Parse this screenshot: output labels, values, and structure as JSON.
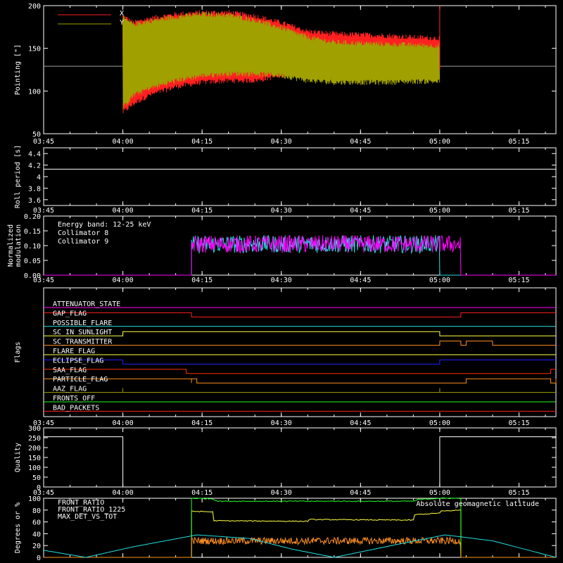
{
  "colors": {
    "bg": "#000000",
    "axis": "#ffffff",
    "x": "#ff2020",
    "y": "#a0a000",
    "col8": "#20e0e0",
    "col9": "#ff00ff",
    "front_ratio": "#ffff40",
    "front_ratio_1225": "#20ff20",
    "max_det": "#ff9020",
    "geomag": "#20e0e0"
  },
  "time_ticks": [
    "03:45",
    "04:00",
    "04:15",
    "04:30",
    "04:45",
    "05:00",
    "05:15"
  ],
  "chart_data": [
    {
      "id": "pointing",
      "type": "line",
      "title": "",
      "xlabel": "",
      "ylabel": "Pointing [\"]",
      "xlim": [
        "03:45",
        "05:22"
      ],
      "ylim": [
        50,
        200
      ],
      "yticks": [
        50,
        100,
        150,
        200
      ],
      "legend": {
        "placement": "top-left",
        "entries": [
          "X",
          "Y"
        ]
      },
      "reference_line": 129,
      "series": [
        {
          "name": "X",
          "color": "#ff2020",
          "description_range": "oscillates 04:00–05:00",
          "x": [
            "04:00",
            "04:02",
            "04:05",
            "04:10",
            "04:15",
            "04:20",
            "04:25",
            "04:30",
            "04:35",
            "04:40",
            "04:45",
            "04:50",
            "04:55",
            "05:00"
          ],
          "y_max": [
            188,
            180,
            185,
            190,
            192,
            192,
            188,
            180,
            170,
            167,
            166,
            165,
            163,
            162
          ],
          "y_min": [
            75,
            85,
            95,
            105,
            110,
            112,
            112,
            118,
            122,
            123,
            124,
            124,
            125,
            125
          ]
        },
        {
          "name": "Y",
          "color": "#a0a000",
          "x": [
            "04:00",
            "04:02",
            "04:05",
            "04:10",
            "04:15",
            "04:20",
            "04:25",
            "04:30",
            "04:35",
            "04:40",
            "04:45",
            "04:50",
            "04:55",
            "05:00"
          ],
          "y_max": [
            185,
            178,
            182,
            187,
            190,
            189,
            183,
            174,
            163,
            157,
            156,
            155,
            154,
            153
          ],
          "y_min": [
            80,
            95,
            103,
            112,
            118,
            120,
            120,
            118,
            112,
            110,
            110,
            110,
            111,
            111
          ]
        }
      ]
    },
    {
      "id": "roll",
      "type": "line",
      "ylabel": "Roll period [s]",
      "ylim": [
        3.5,
        4.5
      ],
      "yticks": [
        3.6,
        3.8,
        4.0,
        4.2,
        4.4
      ],
      "series": [
        {
          "name": "",
          "x": [
            "03:45",
            "05:22"
          ],
          "y": [
            4.13,
            4.13
          ],
          "color": "#ffffff"
        }
      ]
    },
    {
      "id": "modulation",
      "type": "line",
      "ylabel": "Normalized modulation",
      "ylim": [
        0,
        0.2
      ],
      "yticks": [
        0.0,
        0.05,
        0.1,
        0.15,
        0.2
      ],
      "ytick_labels": [
        "0.00",
        "0.05",
        "0.10",
        "0.15",
        "0.20"
      ],
      "legend": {
        "placement": "top-left",
        "header": "Energy band: 12-25 keV",
        "entries": [
          "Collimator 8",
          "Collimator 9"
        ]
      },
      "series": [
        {
          "name": "Collimator 8",
          "color": "#20e0e0",
          "start": "04:13",
          "end": "05:00",
          "mean": 0.105,
          "noise": 0.03
        },
        {
          "name": "Collimator 9",
          "color": "#ff00ff",
          "start": "04:13",
          "end": "05:04",
          "mean": 0.105,
          "noise": 0.03
        }
      ]
    },
    {
      "id": "flags",
      "type": "line",
      "ylabel": "Flags",
      "series": [
        {
          "name": "ATTENUATOR_STATE",
          "color": "#ff00ff",
          "steps": [
            [
              "03:45",
              0
            ],
            [
              "05:22",
              0
            ]
          ]
        },
        {
          "name": "GAP_FLAG",
          "color": "#ff2020",
          "steps": [
            [
              "03:45",
              1
            ],
            [
              "04:13",
              0
            ],
            [
              "05:04",
              1
            ],
            [
              "05:22",
              1
            ]
          ]
        },
        {
          "name": "POSSIBLE_FLARE",
          "color": "#20e0e0",
          "steps": [
            [
              "03:45",
              0
            ],
            [
              "05:22",
              0
            ]
          ]
        },
        {
          "name": "SC_IN_SUNLIGHT",
          "color": "#ffff40",
          "steps": [
            [
              "03:45",
              0
            ],
            [
              "04:00",
              1
            ],
            [
              "05:00",
              0
            ],
            [
              "05:22",
              0
            ]
          ]
        },
        {
          "name": "SC_TRANSMITTER",
          "color": "#ff9020",
          "steps": [
            [
              "03:45",
              0
            ],
            [
              "05:00",
              1
            ],
            [
              "05:04",
              0
            ],
            [
              "05:05",
              1
            ],
            [
              "05:10",
              0
            ],
            [
              "05:22",
              0
            ]
          ]
        },
        {
          "name": "FLARE_FLAG",
          "color": "#ffff40",
          "steps": [
            [
              "03:45",
              0
            ],
            [
              "05:22",
              0
            ]
          ]
        },
        {
          "name": "ECLIPSE_FLAG",
          "color": "#2020ff",
          "steps": [
            [
              "03:45",
              1
            ],
            [
              "04:00",
              0
            ],
            [
              "05:00",
              1
            ],
            [
              "05:22",
              1
            ]
          ]
        },
        {
          "name": "SAA_FLAG",
          "color": "#ff3000",
          "steps": [
            [
              "03:45",
              1
            ],
            [
              "04:12",
              0
            ],
            [
              "05:21",
              1
            ],
            [
              "05:22",
              1
            ]
          ]
        },
        {
          "name": "PARTICLE_FLAG",
          "color": "#ff9020",
          "steps": [
            [
              "03:45",
              1
            ],
            [
              "04:13",
              0
            ],
            [
              "04:13",
              1
            ],
            [
              "04:14",
              0
            ],
            [
              "05:05",
              1
            ],
            [
              "05:21",
              0
            ],
            [
              "05:22",
              1
            ]
          ]
        },
        {
          "name": "AAZ_FLAG",
          "color": "#a0a000",
          "steps": [
            [
              "03:45",
              0
            ],
            [
              "04:00",
              1
            ],
            [
              "04:00",
              0
            ],
            [
              "05:00",
              1
            ],
            [
              "05:00",
              0
            ],
            [
              "05:22",
              0
            ]
          ]
        },
        {
          "name": "FRONTS_OFF",
          "color": "#20ff20",
          "steps": [
            [
              "03:45",
              0
            ],
            [
              "05:22",
              0
            ]
          ]
        },
        {
          "name": "BAD_PACKETS",
          "color": "#ff2020",
          "steps": [
            [
              "03:45",
              0
            ],
            [
              "05:22",
              0
            ]
          ]
        }
      ]
    },
    {
      "id": "quality",
      "type": "line",
      "ylabel": "Quality",
      "ylim": [
        0,
        300
      ],
      "yticks": [
        0,
        50,
        100,
        150,
        200,
        250,
        300
      ],
      "series": [
        {
          "name": "",
          "color": "#ffffff",
          "steps": [
            [
              "03:45",
              255
            ],
            [
              "04:00",
              0
            ],
            [
              "05:00",
              255
            ],
            [
              "05:22",
              255
            ]
          ]
        }
      ]
    },
    {
      "id": "degrees",
      "type": "line",
      "ylabel": "Degrees or %",
      "ylim": [
        0,
        100
      ],
      "yticks": [
        0,
        20,
        40,
        60,
        80,
        100
      ],
      "legend": {
        "placement": "top-left",
        "entries": [
          "FRONT_RATIO",
          "FRONT_RATIO_1225",
          "MAX_DET_VS_TOT"
        ],
        "right_label": "Absolute geomagnetic latitude"
      },
      "series": [
        {
          "name": "FRONT_RATIO",
          "color": "#ffff40",
          "start": "04:13",
          "end": "05:04",
          "x": [
            "04:13",
            "04:17",
            "04:17",
            "04:35",
            "04:35",
            "04:55",
            "04:55",
            "05:00",
            "05:00",
            "05:04"
          ],
          "y": [
            78,
            77,
            62,
            61,
            64,
            63,
            72,
            75,
            78,
            80
          ]
        },
        {
          "name": "FRONT_RATIO_1225",
          "color": "#20ff20",
          "start": "04:13",
          "end": "05:04",
          "x": [
            "04:13",
            "04:17",
            "04:18",
            "04:55",
            "04:56",
            "05:00",
            "05:04"
          ],
          "y": [
            100,
            99,
            95,
            95,
            98,
            100,
            100
          ]
        },
        {
          "name": "MAX_DET_VS_TOT",
          "color": "#ff9020",
          "start": "04:13",
          "end": "05:04",
          "mean": 28,
          "noise": 6
        },
        {
          "name": "Absolute geomagnetic latitude",
          "color": "#20e0e0",
          "x": [
            "03:45",
            "03:53",
            "04:02",
            "04:14",
            "04:24",
            "04:32",
            "04:40",
            "04:52",
            "05:01",
            "05:10",
            "05:22"
          ],
          "y": [
            12,
            0,
            18,
            38,
            32,
            14,
            0,
            22,
            38,
            28,
            0
          ]
        }
      ]
    }
  ]
}
